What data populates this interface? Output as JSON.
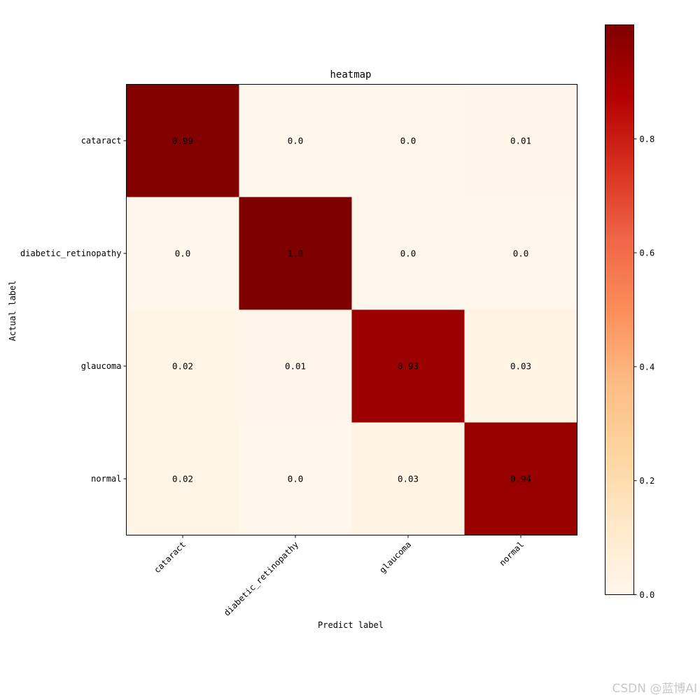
{
  "chart_data": {
    "type": "heatmap",
    "title": "heatmap",
    "xlabel": "Predict label",
    "ylabel": "Actual label",
    "x_categories": [
      "cataract",
      "diabetic_retinopathy",
      "glaucoma",
      "normal"
    ],
    "y_categories": [
      "cataract",
      "diabetic_retinopathy",
      "glaucoma",
      "normal"
    ],
    "values": [
      [
        0.99,
        0.0,
        0.0,
        0.01
      ],
      [
        0.0,
        1.0,
        0.0,
        0.0
      ],
      [
        0.02,
        0.01,
        0.93,
        0.03
      ],
      [
        0.02,
        0.0,
        0.03,
        0.94
      ]
    ],
    "value_labels": [
      [
        "0.99",
        "0.0",
        "0.0",
        "0.01"
      ],
      [
        "0.0",
        "1.0",
        "0.0",
        "0.0"
      ],
      [
        "0.02",
        "0.01",
        "0.93",
        "0.03"
      ],
      [
        "0.02",
        "0.0",
        "0.03",
        "0.94"
      ]
    ],
    "colormap": "OrRd",
    "colorbar": {
      "range": [
        0.0,
        1.0
      ],
      "ticks": [
        0.0,
        0.2,
        0.4,
        0.6,
        0.8
      ],
      "tick_labels": [
        "0.0",
        "0.2",
        "0.4",
        "0.6",
        "0.8"
      ]
    },
    "grid": false
  },
  "watermark": "CSDN @蓝博AI"
}
